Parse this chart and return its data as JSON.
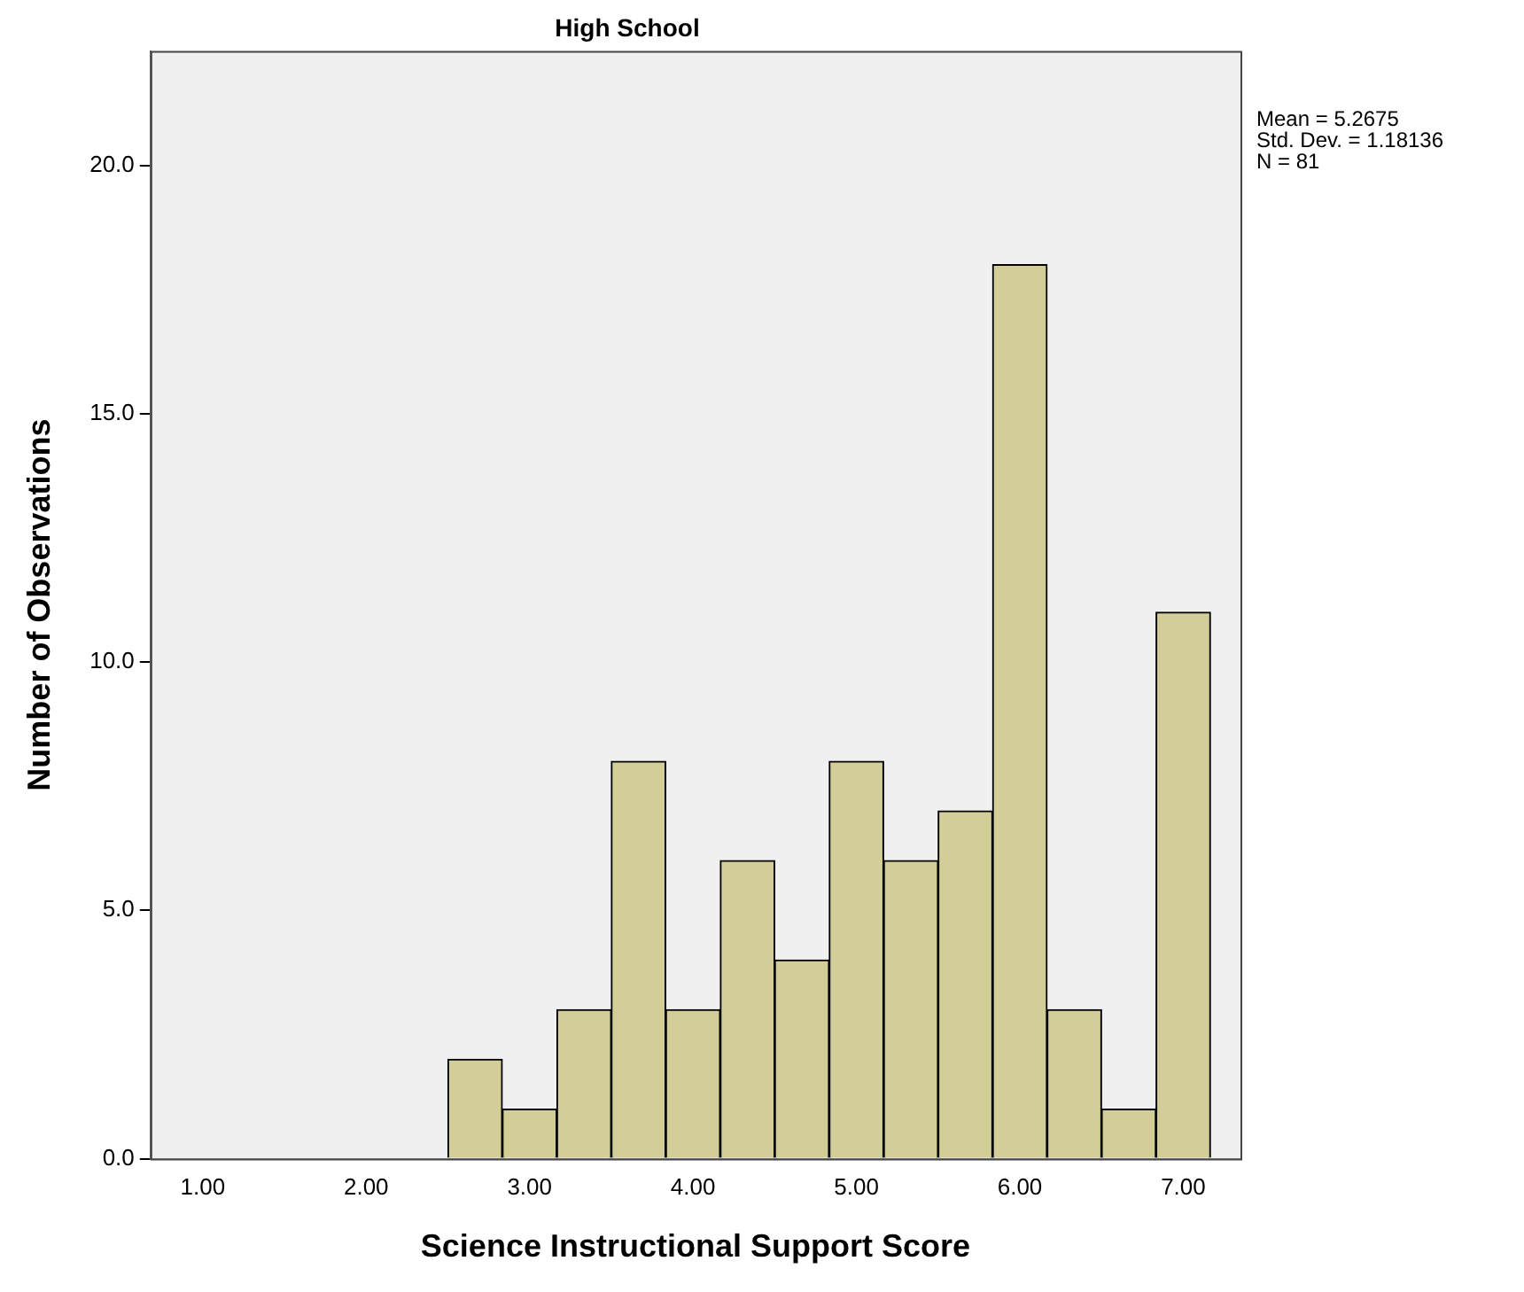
{
  "chart_data": {
    "type": "histogram",
    "title": "High School",
    "xlabel": "Science Instructional Support Score",
    "ylabel": "Number of Observations",
    "bins": [
      2.5,
      2.833,
      3.167,
      3.5,
      3.833,
      4.167,
      4.5,
      4.833,
      5.167,
      5.5,
      5.833,
      6.167,
      6.5,
      6.833,
      7.167
    ],
    "values": [
      2,
      1,
      3,
      8,
      3,
      6,
      4,
      8,
      6,
      7,
      18,
      3,
      1,
      11
    ],
    "color": "#d3ce97",
    "xlim": [
      0.68,
      7.35
    ],
    "xticks": [
      {
        "value": 1,
        "label": "1.00"
      },
      {
        "value": 2,
        "label": "2.00"
      },
      {
        "value": 3,
        "label": "3.00"
      },
      {
        "value": 4,
        "label": "4.00"
      },
      {
        "value": 5,
        "label": "5.00"
      },
      {
        "value": 6,
        "label": "6.00"
      },
      {
        "value": 7,
        "label": "7.00"
      }
    ],
    "ylim": [
      0,
      22.3
    ],
    "yticks": [
      {
        "value": 0,
        "label": "0.0"
      },
      {
        "value": 5,
        "label": "5.0"
      },
      {
        "value": 10,
        "label": "10.0"
      },
      {
        "value": 15,
        "label": "15.0"
      },
      {
        "value": 20,
        "label": "20.0"
      }
    ],
    "annotations": [
      "Mean = 5.2675",
      "Std. Dev. = 1.18136",
      "N = 81"
    ],
    "grid": false,
    "legend": false
  }
}
